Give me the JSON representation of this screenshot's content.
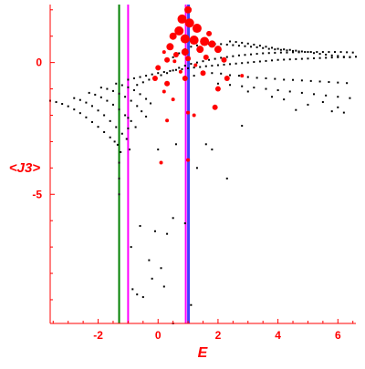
{
  "chart_data": {
    "type": "scatter",
    "title": "",
    "xlabel": "E",
    "ylabel": "<J3>",
    "xlim": [
      -3.6,
      6.6
    ],
    "ylim": [
      -9.9,
      2.2
    ],
    "xticks": [
      -2,
      0,
      2,
      4,
      6
    ],
    "xtick_labels": [
      "-2",
      "0",
      "2",
      "4",
      "6"
    ],
    "yticks": [
      0,
      -5
    ],
    "ytick_labels": [
      "0",
      "-5"
    ],
    "grid": false,
    "legend": "none",
    "colors": {
      "axis": "#ff0000",
      "points": "#000000",
      "highlight": "#ff0000",
      "line_green": "#008000",
      "line_magenta": "#ff00ff",
      "line_blue": "#4040ff"
    },
    "vlines": [
      {
        "x": -1.3,
        "color": "#008000"
      },
      {
        "x": -1.0,
        "color": "#ff00ff"
      },
      {
        "x": 1.0,
        "color": "#ff00ff"
      },
      {
        "x": 1.0,
        "color": "#4040ff"
      }
    ],
    "series": [
      {
        "color": "#000000",
        "marker": "dot",
        "points": [
          [
            -3.6,
            -1.45
          ],
          [
            -3.4,
            -1.5
          ],
          [
            -3.2,
            -1.57
          ],
          [
            -3.0,
            -1.66
          ],
          [
            -2.8,
            -1.78
          ],
          [
            -2.6,
            -1.92
          ],
          [
            -2.4,
            -2.08
          ],
          [
            -2.2,
            -2.26
          ],
          [
            -2.0,
            -2.44
          ],
          [
            -1.8,
            -2.64
          ],
          [
            -1.6,
            -2.84
          ],
          [
            -1.45,
            -3.0
          ],
          [
            -1.35,
            -3.12
          ],
          [
            -2.8,
            -1.35
          ],
          [
            -2.6,
            -1.42
          ],
          [
            -2.4,
            -1.52
          ],
          [
            -2.2,
            -1.65
          ],
          [
            -2.0,
            -1.82
          ],
          [
            -1.8,
            -2.0
          ],
          [
            -1.6,
            -2.22
          ],
          [
            -1.4,
            -2.45
          ],
          [
            -1.2,
            -2.7
          ],
          [
            -1.05,
            -2.9
          ],
          [
            -2.3,
            -1.15
          ],
          [
            -2.1,
            -1.22
          ],
          [
            -1.9,
            -1.32
          ],
          [
            -1.7,
            -1.45
          ],
          [
            -1.5,
            -1.6
          ],
          [
            -1.3,
            -1.78
          ],
          [
            -1.1,
            -2.0
          ],
          [
            -0.9,
            -2.22
          ],
          [
            -0.75,
            -2.45
          ],
          [
            -1.9,
            -0.95
          ],
          [
            -1.7,
            -1.0
          ],
          [
            -1.5,
            -1.08
          ],
          [
            -1.3,
            -1.18
          ],
          [
            -1.1,
            -1.3
          ],
          [
            -0.9,
            -1.45
          ],
          [
            -0.7,
            -1.65
          ],
          [
            -0.55,
            -1.85
          ],
          [
            -0.4,
            -2.05
          ],
          [
            -1.4,
            -0.8
          ],
          [
            -1.2,
            -0.86
          ],
          [
            -1.0,
            -0.94
          ],
          [
            -0.8,
            -1.05
          ],
          [
            -0.6,
            -1.2
          ],
          [
            -0.4,
            -1.38
          ],
          [
            -0.25,
            -1.55
          ],
          [
            -1.25,
            -3.4
          ],
          [
            -1.3,
            -3.8
          ],
          [
            -1.3,
            -4.4
          ],
          [
            -1.3,
            -5.0
          ],
          [
            -1.0,
            -2.1
          ],
          [
            -1.0,
            -2.5
          ],
          [
            -0.95,
            -3.3
          ],
          [
            -0.9,
            -7.0
          ],
          [
            -0.85,
            -8.6
          ],
          [
            -0.7,
            -8.8
          ],
          [
            -0.5,
            -8.9
          ],
          [
            -0.3,
            -7.5
          ],
          [
            -0.2,
            -8.2
          ],
          [
            -0.6,
            -6.2
          ],
          [
            0.1,
            -7.8
          ],
          [
            0.2,
            -8.5
          ],
          [
            -0.1,
            -6.4
          ],
          [
            0.0,
            -3.3
          ],
          [
            0.5,
            -5.9
          ],
          [
            0.3,
            -6.5
          ],
          [
            0.6,
            -3.1
          ],
          [
            0.9,
            -6.1
          ],
          [
            1.1,
            -9.2
          ],
          [
            0.5,
            -9.9
          ],
          [
            1.3,
            -4.0
          ],
          [
            1.6,
            -3.1
          ],
          [
            1.8,
            -3.3
          ],
          [
            2.3,
            -4.4
          ],
          [
            2.8,
            -2.4
          ],
          [
            -1.0,
            -0.65
          ],
          [
            -0.8,
            -0.6
          ],
          [
            -0.6,
            -0.55
          ],
          [
            -0.4,
            -0.5
          ],
          [
            -0.2,
            -0.45
          ],
          [
            0.0,
            -0.4
          ],
          [
            0.2,
            -0.36
          ],
          [
            0.4,
            -0.32
          ],
          [
            0.6,
            -0.28
          ],
          [
            0.8,
            -0.25
          ],
          [
            1.0,
            -0.22
          ],
          [
            1.2,
            -0.19
          ],
          [
            1.4,
            -0.17
          ],
          [
            1.6,
            -0.14
          ],
          [
            1.8,
            -0.12
          ],
          [
            2.0,
            -0.1
          ],
          [
            2.2,
            -0.08
          ],
          [
            2.4,
            -0.06
          ],
          [
            2.6,
            -0.04
          ],
          [
            2.8,
            -0.02
          ],
          [
            3.0,
            0.0
          ],
          [
            3.2,
            0.02
          ],
          [
            3.4,
            0.04
          ],
          [
            3.6,
            0.06
          ],
          [
            3.8,
            0.08
          ],
          [
            4.0,
            0.1
          ],
          [
            4.2,
            0.11
          ],
          [
            4.4,
            0.12
          ],
          [
            4.6,
            0.13
          ],
          [
            4.8,
            0.14
          ],
          [
            5.0,
            0.15
          ],
          [
            5.2,
            0.16
          ],
          [
            5.4,
            0.17
          ],
          [
            5.6,
            0.18
          ],
          [
            5.8,
            0.19
          ],
          [
            6.0,
            0.2
          ],
          [
            6.2,
            0.2
          ],
          [
            6.4,
            0.21
          ],
          [
            6.6,
            0.22
          ],
          [
            -0.7,
            -0.85
          ],
          [
            -0.5,
            -0.75
          ],
          [
            -0.3,
            -0.65
          ],
          [
            -0.1,
            -0.55
          ],
          [
            0.1,
            -0.48
          ],
          [
            0.3,
            -0.4
          ],
          [
            0.5,
            -0.3
          ],
          [
            0.7,
            -0.2
          ],
          [
            0.9,
            -0.12
          ],
          [
            1.1,
            -0.05
          ],
          [
            1.3,
            0.0
          ],
          [
            1.5,
            0.05
          ],
          [
            1.7,
            0.1
          ],
          [
            1.9,
            0.14
          ],
          [
            2.1,
            0.18
          ],
          [
            2.3,
            0.21
          ],
          [
            2.5,
            0.24
          ],
          [
            2.7,
            0.27
          ],
          [
            2.9,
            0.29
          ],
          [
            3.1,
            0.31
          ],
          [
            3.3,
            0.33
          ],
          [
            3.5,
            0.35
          ],
          [
            3.7,
            0.36
          ],
          [
            3.9,
            0.37
          ],
          [
            4.1,
            0.38
          ],
          [
            4.3,
            0.38
          ],
          [
            4.5,
            0.39
          ],
          [
            4.7,
            0.39
          ],
          [
            4.9,
            0.4
          ],
          [
            5.1,
            0.4
          ],
          [
            5.3,
            0.4
          ],
          [
            5.5,
            0.4
          ],
          [
            5.7,
            0.4
          ],
          [
            5.9,
            0.4
          ],
          [
            6.1,
            0.4
          ],
          [
            6.3,
            0.39
          ],
          [
            6.5,
            0.38
          ],
          [
            0.3,
            0.1
          ],
          [
            0.5,
            0.2
          ],
          [
            0.7,
            0.35
          ],
          [
            0.9,
            0.5
          ],
          [
            1.1,
            0.6
          ],
          [
            1.3,
            0.65
          ],
          [
            1.5,
            0.68
          ],
          [
            1.7,
            0.7
          ],
          [
            1.9,
            0.7
          ],
          [
            2.1,
            0.7
          ],
          [
            2.3,
            0.68
          ],
          [
            2.5,
            0.66
          ],
          [
            2.7,
            0.64
          ],
          [
            2.9,
            0.62
          ],
          [
            3.1,
            0.6
          ],
          [
            3.3,
            0.58
          ],
          [
            3.5,
            0.55
          ],
          [
            3.7,
            0.52
          ],
          [
            3.9,
            0.5
          ],
          [
            4.1,
            0.48
          ],
          [
            4.3,
            0.46
          ],
          [
            4.5,
            0.44
          ],
          [
            4.7,
            0.42
          ],
          [
            2.4,
            0.8
          ],
          [
            2.6,
            0.78
          ],
          [
            2.8,
            0.75
          ],
          [
            3.0,
            0.72
          ],
          [
            3.2,
            0.68
          ],
          [
            3.4,
            0.64
          ],
          [
            3.6,
            0.6
          ],
          [
            3.8,
            0.56
          ],
          [
            4.0,
            0.52
          ],
          [
            4.2,
            0.5
          ],
          [
            4.4,
            0.48
          ],
          [
            4.6,
            0.45
          ],
          [
            4.8,
            0.42
          ],
          [
            5.0,
            0.4
          ],
          [
            5.2,
            0.36
          ],
          [
            5.4,
            0.33
          ],
          [
            5.6,
            0.3
          ],
          [
            5.8,
            0.27
          ],
          [
            6.0,
            0.25
          ],
          [
            6.2,
            0.22
          ],
          [
            6.4,
            0.2
          ],
          [
            1.2,
            -0.5
          ],
          [
            1.5,
            -0.45
          ],
          [
            1.8,
            -0.4
          ],
          [
            2.1,
            -0.42
          ],
          [
            2.4,
            -0.48
          ],
          [
            2.7,
            -0.5
          ],
          [
            3.0,
            -0.55
          ],
          [
            3.3,
            -0.58
          ],
          [
            3.6,
            -0.6
          ],
          [
            3.9,
            -0.62
          ],
          [
            4.2,
            -0.65
          ],
          [
            4.5,
            -0.66
          ],
          [
            4.8,
            -0.68
          ],
          [
            5.1,
            -0.7
          ],
          [
            5.4,
            -0.72
          ],
          [
            5.7,
            -0.74
          ],
          [
            6.0,
            -0.76
          ],
          [
            6.3,
            -0.78
          ],
          [
            2.0,
            -0.8
          ],
          [
            2.4,
            -0.85
          ],
          [
            2.8,
            -0.9
          ],
          [
            3.2,
            -0.95
          ],
          [
            3.6,
            -1.0
          ],
          [
            4.0,
            -1.05
          ],
          [
            4.4,
            -1.1
          ],
          [
            4.8,
            -1.15
          ],
          [
            5.2,
            -1.2
          ],
          [
            5.6,
            -1.25
          ],
          [
            6.0,
            -1.3
          ],
          [
            6.4,
            -1.35
          ],
          [
            3.0,
            -1.1
          ],
          [
            4.2,
            -1.4
          ],
          [
            5.0,
            -1.6
          ],
          [
            5.5,
            -1.5
          ],
          [
            6.0,
            -1.7
          ],
          [
            6.2,
            -1.9
          ],
          [
            3.8,
            -1.3
          ],
          [
            4.6,
            -1.8
          ],
          [
            5.8,
            -1.85
          ]
        ]
      },
      {
        "color": "#ff0000",
        "marker": "blob",
        "points": [
          [
            1.0,
            2.0,
            4
          ],
          [
            0.8,
            1.65,
            5
          ],
          [
            1.05,
            1.5,
            5
          ],
          [
            1.3,
            1.3,
            5
          ],
          [
            0.7,
            1.2,
            5
          ],
          [
            0.9,
            0.9,
            5
          ],
          [
            1.2,
            0.85,
            5
          ],
          [
            1.55,
            0.8,
            5
          ],
          [
            0.5,
            1.0,
            4
          ],
          [
            1.8,
            0.7,
            4
          ],
          [
            2.0,
            0.5,
            4
          ],
          [
            1.4,
            0.5,
            4
          ],
          [
            0.9,
            0.4,
            4
          ],
          [
            0.4,
            0.6,
            4
          ],
          [
            0.6,
            0.3,
            3
          ],
          [
            1.0,
            0.15,
            3
          ],
          [
            1.6,
            0.2,
            3
          ],
          [
            2.2,
            0.1,
            3
          ],
          [
            0.3,
            0.1,
            3
          ],
          [
            0.0,
            -0.2,
            3
          ],
          [
            -0.1,
            -0.6,
            3
          ],
          [
            0.3,
            -0.8,
            3
          ],
          [
            0.9,
            -0.6,
            3
          ],
          [
            1.5,
            -0.4,
            3
          ],
          [
            2.3,
            -0.6,
            3
          ],
          [
            2.0,
            -1.0,
            3
          ],
          [
            1.9,
            -1.7,
            3
          ],
          [
            0.2,
            -1.1,
            2
          ],
          [
            0.5,
            -1.4,
            2
          ],
          [
            1.0,
            -1.9,
            2
          ],
          [
            1.2,
            -2.0,
            2
          ],
          [
            0.3,
            -2.2,
            2
          ],
          [
            0.1,
            -3.8,
            2
          ],
          [
            1.0,
            -3.7,
            2
          ],
          [
            2.8,
            -0.5,
            2
          ],
          [
            1.7,
            1.1,
            3
          ],
          [
            0.2,
            0.4,
            2
          ],
          [
            0.55,
            0.05,
            2
          ],
          [
            1.25,
            -0.1,
            2
          ],
          [
            0.75,
            -0.35,
            2
          ]
        ]
      }
    ]
  }
}
